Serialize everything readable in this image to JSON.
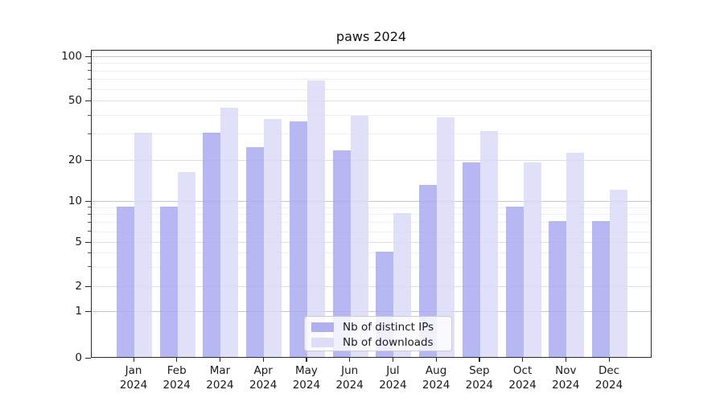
{
  "figure": {
    "title": "paws 2024"
  },
  "chart_data": {
    "type": "bar",
    "title": "paws 2024",
    "categories": [
      "Jan 2024",
      "Feb 2024",
      "Mar 2024",
      "Apr 2024",
      "May 2024",
      "Jun 2024",
      "Jul 2024",
      "Aug 2024",
      "Sep 2024",
      "Oct 2024",
      "Nov 2024",
      "Dec 2024"
    ],
    "series": [
      {
        "name": "Nb of distinct IPs",
        "color": "#a7a7f0",
        "values": [
          9,
          9,
          30,
          24,
          36,
          23,
          4,
          13,
          19,
          9,
          7,
          7
        ]
      },
      {
        "name": "Nb of downloads",
        "color": "#d9d9f7",
        "values": [
          30,
          16,
          44,
          37,
          68,
          39,
          8,
          38,
          31,
          19,
          22,
          12
        ]
      }
    ],
    "xlabel": "",
    "ylabel": "",
    "yscale": "log-like (compressed below 10, linear 0-1 segment)",
    "ylim": [
      0,
      109
    ],
    "y_major_ticks": [
      100,
      50,
      20,
      10,
      5,
      2,
      1,
      0
    ],
    "y_minor_gridlines": [
      90,
      80,
      70,
      60,
      40,
      30,
      9,
      8,
      7,
      6,
      4,
      3
    ],
    "grid": true,
    "legend_position": "lower center"
  }
}
